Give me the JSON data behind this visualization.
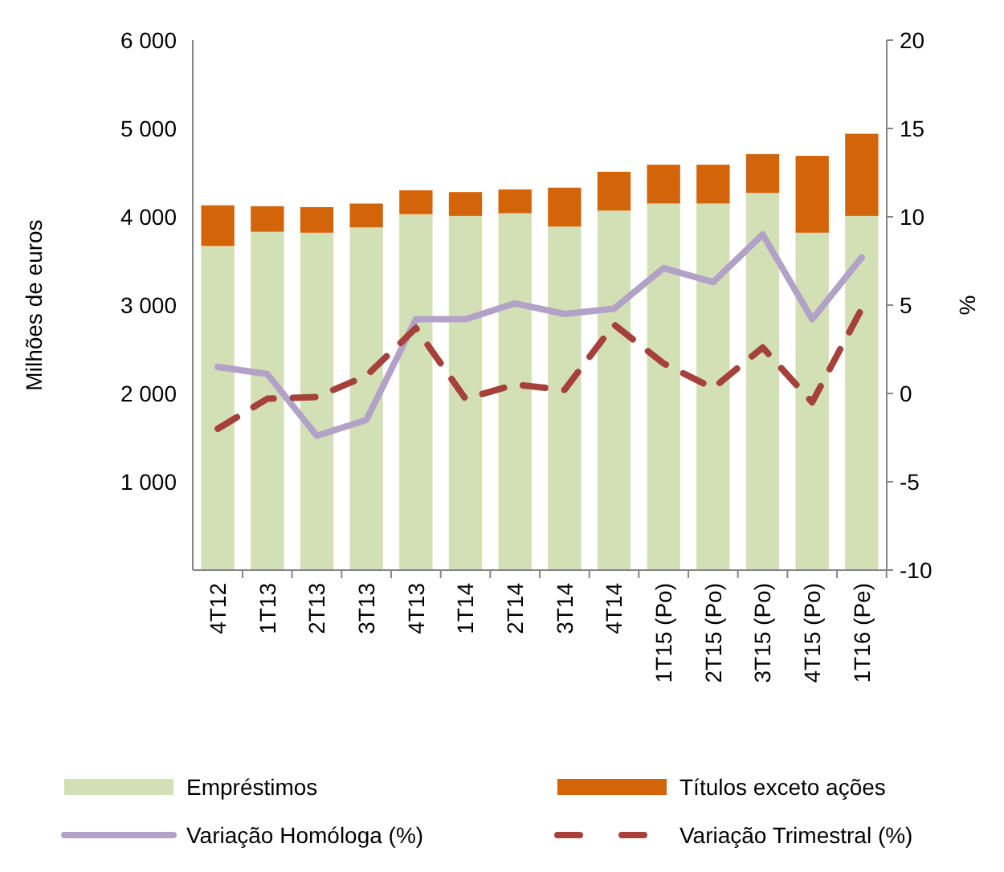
{
  "chart_data": {
    "type": "bar",
    "stacked": true,
    "ylabel": "Milhões de euros",
    "y2label": "%",
    "categories": [
      "4T12",
      "1T13",
      "2T13",
      "3T13",
      "4T13",
      "1T14",
      "2T14",
      "3T14",
      "4T14",
      "1T15 (Po)",
      "2T15 (Po)",
      "3T15 (Po)",
      "4T15 (Po)",
      "1T16 (Pe)"
    ],
    "series": [
      {
        "name": "Empréstimos",
        "color": "#d3e0b5",
        "values": [
          3670,
          3830,
          3820,
          3880,
          4030,
          4010,
          4040,
          3890,
          4070,
          4150,
          4150,
          4270,
          3820,
          4010
        ]
      },
      {
        "name": "Títulos exceto ações",
        "color": "#d4640a",
        "values": [
          460,
          290,
          290,
          270,
          270,
          270,
          270,
          440,
          440,
          440,
          440,
          440,
          870,
          930
        ]
      },
      {
        "name": "Variação Homóloga (%)",
        "type": "line",
        "axis": "y2",
        "color": "#b3a2c7",
        "line_style": "solid",
        "values": [
          1.5,
          1.1,
          -2.4,
          -1.5,
          4.2,
          4.2,
          5.1,
          4.5,
          4.8,
          7.1,
          6.3,
          9.0,
          4.2,
          7.7
        ]
      },
      {
        "name": "Variação Trimestral (%)",
        "type": "line",
        "axis": "y2",
        "color": "#a5403b",
        "line_style": "dashed",
        "values": [
          -2.0,
          -0.3,
          -0.2,
          1.0,
          3.7,
          -0.3,
          0.5,
          0.2,
          3.9,
          1.7,
          0.3,
          2.6,
          -0.5,
          4.8
        ]
      }
    ],
    "ylim": [
      0,
      6000
    ],
    "yticks": [
      {
        "value": 1000,
        "label": "1 000"
      },
      {
        "value": 2000,
        "label": "2 000"
      },
      {
        "value": 3000,
        "label": "3 000"
      },
      {
        "value": 4000,
        "label": "4 000"
      },
      {
        "value": 5000,
        "label": "5 000"
      },
      {
        "value": 6000,
        "label": "6 000"
      }
    ],
    "y2lim": [
      -10,
      20
    ],
    "y2ticks": [
      -10,
      -5,
      0,
      5,
      10,
      15,
      20
    ],
    "grid": false,
    "legend": "bottom",
    "marker": "none"
  }
}
